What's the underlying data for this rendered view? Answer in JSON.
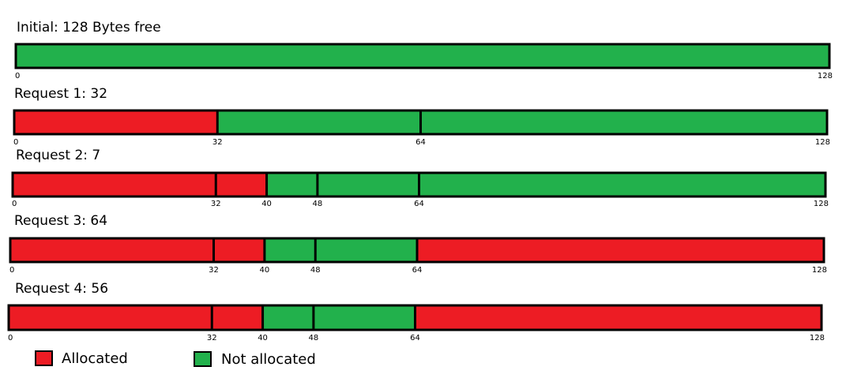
{
  "colors": {
    "allocated": "#ed1c24",
    "free": "#22b14c",
    "outline": "#000000"
  },
  "total_bytes": 128,
  "rows": [
    {
      "title": "Initial: 128 Bytes free",
      "segments": [
        {
          "start": 0,
          "end": 128,
          "state": "free"
        }
      ],
      "dividers": [],
      "ticks": [
        {
          "value": 0,
          "label": "0"
        },
        {
          "value": 128,
          "label": "128"
        }
      ]
    },
    {
      "title": "Request 1: 32",
      "segments": [
        {
          "start": 0,
          "end": 32,
          "state": "allocated"
        },
        {
          "start": 32,
          "end": 64,
          "state": "free"
        },
        {
          "start": 64,
          "end": 128,
          "state": "free"
        }
      ],
      "dividers": [
        32,
        64
      ],
      "ticks": [
        {
          "value": 0,
          "label": "0"
        },
        {
          "value": 32,
          "label": "32"
        },
        {
          "value": 64,
          "label": "64"
        },
        {
          "value": 128,
          "label": "128"
        }
      ]
    },
    {
      "title": "Request 2: 7",
      "segments": [
        {
          "start": 0,
          "end": 32,
          "state": "allocated"
        },
        {
          "start": 32,
          "end": 40,
          "state": "allocated"
        },
        {
          "start": 40,
          "end": 48,
          "state": "free"
        },
        {
          "start": 48,
          "end": 64,
          "state": "free"
        },
        {
          "start": 64,
          "end": 128,
          "state": "free"
        }
      ],
      "dividers": [
        32,
        40,
        48,
        64
      ],
      "ticks": [
        {
          "value": 0,
          "label": "0"
        },
        {
          "value": 32,
          "label": "32"
        },
        {
          "value": 40,
          "label": "40"
        },
        {
          "value": 48,
          "label": "48"
        },
        {
          "value": 64,
          "label": "64"
        },
        {
          "value": 128,
          "label": "128"
        }
      ]
    },
    {
      "title": "Request 3: 64",
      "segments": [
        {
          "start": 0,
          "end": 32,
          "state": "allocated"
        },
        {
          "start": 32,
          "end": 40,
          "state": "allocated"
        },
        {
          "start": 40,
          "end": 48,
          "state": "free"
        },
        {
          "start": 48,
          "end": 64,
          "state": "free"
        },
        {
          "start": 64,
          "end": 128,
          "state": "allocated"
        }
      ],
      "dividers": [
        32,
        40,
        48,
        64
      ],
      "ticks": [
        {
          "value": 0,
          "label": "0"
        },
        {
          "value": 32,
          "label": "32"
        },
        {
          "value": 40,
          "label": "40"
        },
        {
          "value": 48,
          "label": "48"
        },
        {
          "value": 64,
          "label": "64"
        },
        {
          "value": 128,
          "label": "128"
        }
      ]
    },
    {
      "title": "Request 4: 56",
      "segments": [
        {
          "start": 0,
          "end": 32,
          "state": "allocated"
        },
        {
          "start": 32,
          "end": 40,
          "state": "allocated"
        },
        {
          "start": 40,
          "end": 48,
          "state": "free"
        },
        {
          "start": 48,
          "end": 64,
          "state": "free"
        },
        {
          "start": 64,
          "end": 128,
          "state": "allocated"
        }
      ],
      "dividers": [
        32,
        40,
        48,
        64
      ],
      "ticks": [
        {
          "value": 0,
          "label": "0"
        },
        {
          "value": 32,
          "label": "32"
        },
        {
          "value": 40,
          "label": "40"
        },
        {
          "value": 48,
          "label": "48"
        },
        {
          "value": 64,
          "label": "64"
        },
        {
          "value": 128,
          "label": "128"
        }
      ]
    }
  ],
  "legend": {
    "allocated_label": "Allocated",
    "free_label": "Not allocated"
  }
}
